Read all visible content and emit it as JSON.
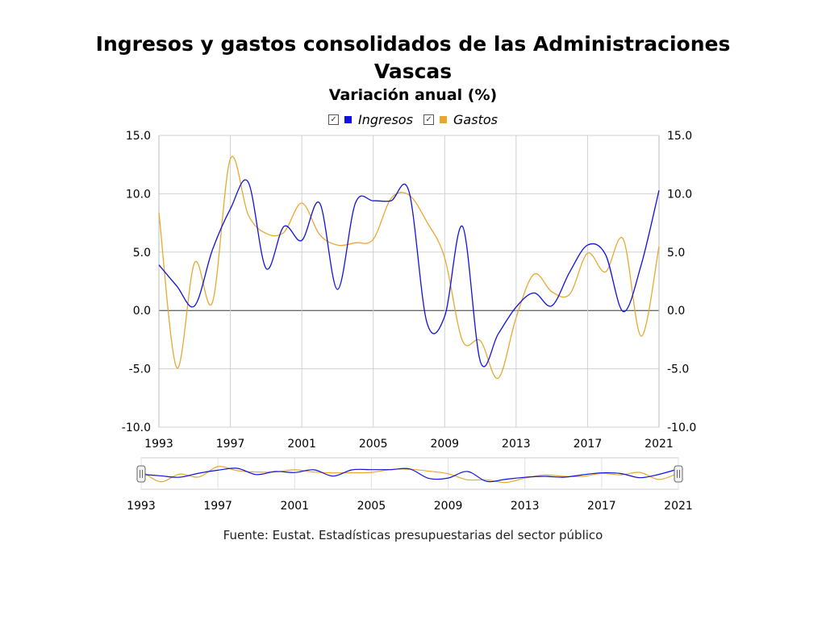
{
  "title": "Ingresos y gastos consolidados de las Administraciones Vascas",
  "subtitle": "Variación anual (%)",
  "source": "Fuente: Eustat. Estadísticas presupuestarias del sector público",
  "legend": [
    {
      "label": "Ingresos",
      "color": "#1010e0",
      "checked": true
    },
    {
      "label": "Gastos",
      "color": "#e8a830",
      "checked": true
    }
  ],
  "chart_data": {
    "type": "line",
    "title": "Ingresos y gastos consolidados de las Administraciones Vascas",
    "subtitle": "Variación anual (%)",
    "xlabel": "",
    "ylabel": "",
    "x": [
      1993,
      1994,
      1995,
      1996,
      1997,
      1998,
      1999,
      2000,
      2001,
      2002,
      2003,
      2004,
      2005,
      2006,
      2007,
      2008,
      2009,
      2010,
      2011,
      2012,
      2013,
      2014,
      2015,
      2016,
      2017,
      2018,
      2019,
      2020,
      2021
    ],
    "xticks": [
      "1993",
      "1997",
      "2001",
      "2005",
      "2009",
      "2013",
      "2017",
      "2021"
    ],
    "xlim": [
      1993,
      2021
    ],
    "ylim": [
      -10,
      15
    ],
    "yticks": [
      "15.0",
      "10.0",
      "5.0",
      "0.0",
      "-5.0",
      "-10.0"
    ],
    "grid": true,
    "legend_position": "top",
    "series": [
      {
        "name": "Ingresos",
        "color": "#1010e0",
        "values": [
          3.9,
          2.1,
          0.4,
          5.2,
          8.7,
          11.0,
          3.6,
          7.2,
          6.0,
          9.2,
          1.8,
          9.2,
          9.4,
          9.4,
          10.2,
          -1.0,
          -0.5,
          7.2,
          -4.4,
          -2.0,
          0.3,
          1.5,
          0.4,
          3.3,
          5.6,
          4.8,
          -0.1,
          3.9,
          10.3
        ]
      },
      {
        "name": "Gastos",
        "color": "#e8a830",
        "values": [
          8.4,
          -4.9,
          4.1,
          0.7,
          13.0,
          8.2,
          6.6,
          6.7,
          9.2,
          6.5,
          5.6,
          5.8,
          6.1,
          9.6,
          9.9,
          7.6,
          4.5,
          -2.6,
          -2.6,
          -5.8,
          -0.6,
          3.1,
          1.6,
          1.4,
          4.9,
          3.3,
          6.1,
          -2.2,
          5.5
        ]
      }
    ]
  }
}
